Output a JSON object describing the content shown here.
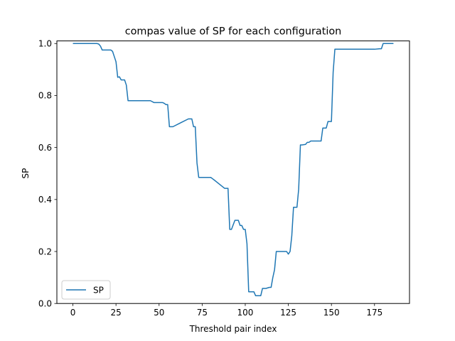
{
  "chart_data": {
    "type": "line",
    "title": "compas value of SP for each configuration",
    "xlabel": "Threshold pair index",
    "ylabel": "SP",
    "xlim": [
      -9.3,
      195.3
    ],
    "ylim": [
      0,
      1.01
    ],
    "xticks": [
      0,
      25,
      50,
      75,
      100,
      125,
      150,
      175
    ],
    "yticks": [
      0.0,
      0.2,
      0.4,
      0.6,
      0.8,
      1.0
    ],
    "xtick_labels": [
      "0",
      "25",
      "50",
      "75",
      "100",
      "125",
      "150",
      "175"
    ],
    "ytick_labels": [
      "0.0",
      "0.2",
      "0.4",
      "0.6",
      "0.8",
      "1.0"
    ],
    "grid": false,
    "legend_position": "lower-left",
    "series": [
      {
        "name": "SP",
        "color": "#1f77b4",
        "x": [
          0,
          14,
          15,
          16,
          17,
          22,
          23,
          24,
          25,
          26,
          27,
          28,
          29,
          30,
          31,
          32,
          33,
          45,
          47,
          52,
          53,
          54,
          55,
          56,
          57,
          58,
          67,
          68,
          69,
          70,
          71,
          72,
          73,
          79,
          80,
          81,
          82,
          88,
          89,
          90,
          91,
          92,
          94,
          95,
          96,
          97,
          98,
          99,
          100,
          101,
          102,
          103,
          104,
          105,
          106,
          107,
          108,
          109,
          110,
          111,
          112,
          113,
          114,
          115,
          116,
          117,
          118,
          119,
          120,
          124,
          125,
          126,
          127,
          128,
          129,
          130,
          131,
          132,
          133,
          135,
          136,
          137,
          138,
          144,
          145,
          147,
          148,
          150,
          151,
          152,
          153,
          170,
          172,
          175,
          178,
          179,
          180,
          181,
          186
        ],
        "y": [
          1.0,
          1.0,
          0.998,
          0.99,
          0.975,
          0.975,
          0.97,
          0.95,
          0.93,
          0.87,
          0.872,
          0.86,
          0.86,
          0.86,
          0.84,
          0.78,
          0.78,
          0.78,
          0.773,
          0.773,
          0.77,
          0.765,
          0.765,
          0.68,
          0.68,
          0.68,
          0.71,
          0.71,
          0.71,
          0.68,
          0.68,
          0.54,
          0.485,
          0.485,
          0.485,
          0.48,
          0.475,
          0.443,
          0.443,
          0.443,
          0.285,
          0.285,
          0.32,
          0.32,
          0.32,
          0.3,
          0.3,
          0.285,
          0.285,
          0.23,
          0.045,
          0.045,
          0.045,
          0.045,
          0.03,
          0.03,
          0.03,
          0.03,
          0.058,
          0.058,
          0.058,
          0.06,
          0.062,
          0.062,
          0.1,
          0.13,
          0.2,
          0.2,
          0.2,
          0.2,
          0.19,
          0.2,
          0.26,
          0.37,
          0.37,
          0.37,
          0.44,
          0.61,
          0.61,
          0.612,
          0.62,
          0.62,
          0.625,
          0.625,
          0.675,
          0.675,
          0.7,
          0.7,
          0.89,
          0.978,
          0.978,
          0.978,
          0.978,
          0.978,
          0.98,
          0.98,
          1.0,
          1.0,
          1.0
        ]
      }
    ]
  }
}
